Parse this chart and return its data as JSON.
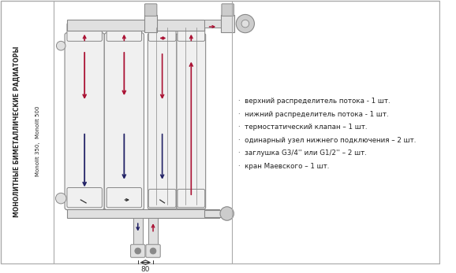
{
  "bg_color": "#ffffff",
  "title_main": "МОНОЛИТНЫЕ БИМЕТАЛЛИЧЕСКИЕ РАДИАТОРЫ",
  "title_sub": "Monolit 350,  Monolit 500",
  "bullet_items": [
    "верхний распределитель потока - 1 шт.",
    "нижний распределитель потока - 1 шт.",
    "термостатический клапан – 1 шт.",
    "одинарный узел нижнего подключения – 2 шт.",
    "заглушка G3/4'' или G1/2'' – 2 шт.",
    "кран Маевского – 1 шт."
  ],
  "dim_label": "80",
  "red_color": "#aa1133",
  "blue_color": "#222266",
  "dark_color": "#333333",
  "body_color": "#f0f0f0",
  "body_stroke": "#777777",
  "pipe_color": "#e0e0e0",
  "divider_color": "#aaaaaa"
}
